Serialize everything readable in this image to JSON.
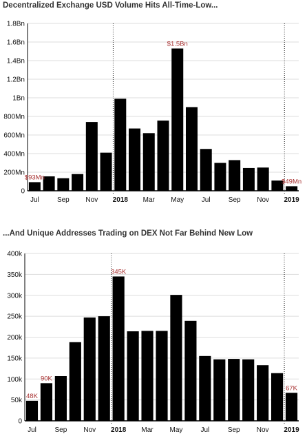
{
  "chart_data": [
    {
      "type": "bar",
      "title": "Decentralized Exchange USD Volume Hits All-Time-Low...",
      "ylim": [
        0,
        1800000000
      ],
      "y_ticks": [
        {
          "value": 0,
          "label": "0"
        },
        {
          "value": 200000000,
          "label": "200Mn"
        },
        {
          "value": 400000000,
          "label": "400Mn"
        },
        {
          "value": 600000000,
          "label": "600Mn"
        },
        {
          "value": 800000000,
          "label": "800Mn"
        },
        {
          "value": 1000000000,
          "label": "1Bn"
        },
        {
          "value": 1200000000,
          "label": "1.2Bn"
        },
        {
          "value": 1400000000,
          "label": "1.4Bn"
        },
        {
          "value": 1600000000,
          "label": "1.6Bn"
        },
        {
          "value": 1800000000,
          "label": "1.8Bn"
        }
      ],
      "categories": [
        "2017-07",
        "2017-08",
        "2017-09",
        "2017-10",
        "2017-11",
        "2017-12",
        "2018-01",
        "2018-02",
        "2018-03",
        "2018-04",
        "2018-05",
        "2018-06",
        "2018-07",
        "2018-08",
        "2018-09",
        "2018-10",
        "2018-11",
        "2018-12",
        "2019-01"
      ],
      "values": [
        93000000,
        155000000,
        135000000,
        180000000,
        740000000,
        410000000,
        990000000,
        670000000,
        620000000,
        755000000,
        1530000000,
        900000000,
        450000000,
        300000000,
        330000000,
        245000000,
        250000000,
        110000000,
        49000000
      ],
      "x_tick_labels": [
        {
          "index": 0,
          "label": "Jul",
          "bold": false
        },
        {
          "index": 2,
          "label": "Sep",
          "bold": false
        },
        {
          "index": 4,
          "label": "Nov",
          "bold": false
        },
        {
          "index": 6,
          "label": "2018",
          "bold": true
        },
        {
          "index": 8,
          "label": "Mar",
          "bold": false
        },
        {
          "index": 10,
          "label": "May",
          "bold": false
        },
        {
          "index": 12,
          "label": "Jul",
          "bold": false
        },
        {
          "index": 14,
          "label": "Sep",
          "bold": false
        },
        {
          "index": 16,
          "label": "Nov",
          "bold": false
        },
        {
          "index": 18,
          "label": "2019",
          "bold": true
        }
      ],
      "annotations": [
        {
          "index": 0,
          "label": "$93Mn"
        },
        {
          "index": 10,
          "label": "$1.5Bn"
        },
        {
          "index": 18,
          "label": "$49Mn"
        }
      ],
      "year_dividers": [
        6,
        18
      ],
      "grid": true,
      "bar_color": "#000000",
      "label_color": "#a83232"
    },
    {
      "type": "bar",
      "title": "...And Unique Addresses Trading on DEX Not Far Behind New Low",
      "ylim": [
        0,
        400000
      ],
      "y_ticks": [
        {
          "value": 0,
          "label": "0"
        },
        {
          "value": 50000,
          "label": "50k"
        },
        {
          "value": 100000,
          "label": "100k"
        },
        {
          "value": 150000,
          "label": "150k"
        },
        {
          "value": 200000,
          "label": "200k"
        },
        {
          "value": 250000,
          "label": "250k"
        },
        {
          "value": 300000,
          "label": "300k"
        },
        {
          "value": 350000,
          "label": "350k"
        },
        {
          "value": 400000,
          "label": "400k"
        }
      ],
      "categories": [
        "2017-07",
        "2017-08",
        "2017-09",
        "2017-10",
        "2017-11",
        "2017-12",
        "2018-01",
        "2018-02",
        "2018-03",
        "2018-04",
        "2018-05",
        "2018-06",
        "2018-07",
        "2018-08",
        "2018-09",
        "2018-10",
        "2018-11",
        "2018-12",
        "2019-01"
      ],
      "values": [
        48000,
        90000,
        107000,
        188000,
        247000,
        250000,
        345000,
        214000,
        215000,
        215000,
        301000,
        239000,
        155000,
        147000,
        148000,
        147000,
        133000,
        114000,
        67000
      ],
      "x_tick_labels": [
        {
          "index": 0,
          "label": "Jul",
          "bold": false
        },
        {
          "index": 2,
          "label": "Sep",
          "bold": false
        },
        {
          "index": 4,
          "label": "Nov",
          "bold": false
        },
        {
          "index": 6,
          "label": "2018",
          "bold": true
        },
        {
          "index": 8,
          "label": "Mar",
          "bold": false
        },
        {
          "index": 10,
          "label": "May",
          "bold": false
        },
        {
          "index": 12,
          "label": "Jul",
          "bold": false
        },
        {
          "index": 14,
          "label": "Sep",
          "bold": false
        },
        {
          "index": 16,
          "label": "Nov",
          "bold": false
        },
        {
          "index": 18,
          "label": "2019",
          "bold": true
        }
      ],
      "annotations": [
        {
          "index": 0,
          "label": "48K"
        },
        {
          "index": 1,
          "label": "90K"
        },
        {
          "index": 6,
          "label": "345K"
        },
        {
          "index": 18,
          "label": "67K"
        }
      ],
      "year_dividers": [
        6,
        18
      ],
      "grid": true,
      "bar_color": "#000000",
      "label_color": "#a83232"
    }
  ]
}
